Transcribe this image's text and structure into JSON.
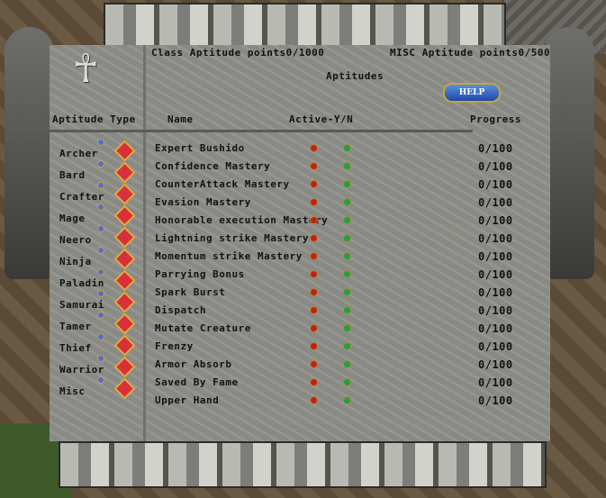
{
  "header": {
    "class_points_label": "Class Aptitude points",
    "class_points": "0/1000",
    "misc_points_label": "MISC Aptitude points",
    "misc_points": "0/500",
    "title": "Aptitudes",
    "help_label": "HELP"
  },
  "columns": {
    "type": "Aptitude Type",
    "name": "Name",
    "active": "Active-Y/N",
    "progress": "Progress"
  },
  "classes": [
    "Archer",
    "Bard",
    "Crafter",
    "Mage",
    "Neero",
    "Ninja",
    "Paladin",
    "Samurai",
    "Tamer",
    "Thief",
    "Warrior",
    "Misc"
  ],
  "aptitudes": [
    {
      "name": "Expert Bushido",
      "progress": "0/100"
    },
    {
      "name": "Confidence Mastery",
      "progress": "0/100"
    },
    {
      "name": "CounterAttack Mastery",
      "progress": "0/100"
    },
    {
      "name": "Evasion Mastery",
      "progress": "0/100"
    },
    {
      "name": "Honorable execution Mastery",
      "progress": "0/100"
    },
    {
      "name": "Lightning strike Mastery",
      "progress": "0/100"
    },
    {
      "name": "Momentum strike Mastery",
      "progress": "0/100"
    },
    {
      "name": "Parrying Bonus",
      "progress": "0/100"
    },
    {
      "name": "Spark Burst",
      "progress": "0/100"
    },
    {
      "name": "Dispatch",
      "progress": "0/100"
    },
    {
      "name": "Mutate Creature",
      "progress": "0/100"
    },
    {
      "name": "Frenzy",
      "progress": "0/100"
    },
    {
      "name": "Armor Absorb",
      "progress": "0/100"
    },
    {
      "name": "Saved By Fame",
      "progress": "0/100"
    },
    {
      "name": "Upper Hand",
      "progress": "0/100"
    }
  ],
  "icons": {
    "ankh": "ankh-icon",
    "class_select": "blue-gem-button",
    "class_gem": "red-gem-icon",
    "active_no": "red-dot-button",
    "active_yes": "green-dot-button"
  }
}
